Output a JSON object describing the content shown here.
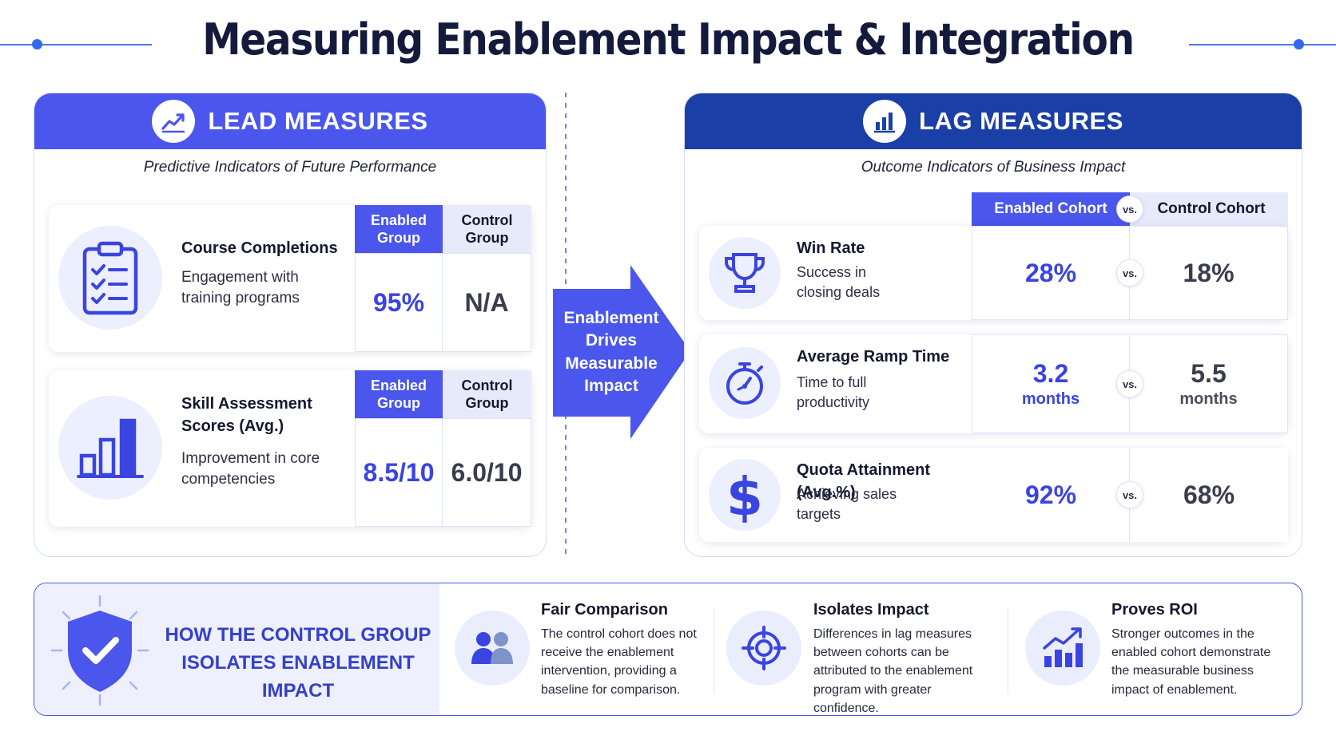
{
  "title": "Measuring Enablement Impact & Integration",
  "lead": {
    "heading": "LEAD MEASURES",
    "heading_icon": "trend-line-icon",
    "subtitle": "Predictive Indicators of Future Performance",
    "col_enabled": "Enabled Group",
    "col_control": "Control Group",
    "rows": [
      {
        "icon": "clipboard-checklist-icon",
        "title": "Course Completions",
        "description": "Engagement with training programs",
        "enabled": "95%",
        "control": "N/A"
      },
      {
        "icon": "bar-chart-icon",
        "title": "Skill Assessment Scores (Avg.)",
        "description": "Improvement in core competencies",
        "enabled": "8.5/10",
        "control": "6.0/10"
      }
    ]
  },
  "arrow": {
    "label": "Enablement Drives Measurable Impact"
  },
  "lag": {
    "heading": "LAG MEASURES",
    "heading_icon": "bar-chart-icon",
    "subtitle": "Outcome Indicators of Business Impact",
    "col_enabled": "Enabled Cohort",
    "col_control": "Control Cohort",
    "vs": "vs.",
    "rows": [
      {
        "icon": "trophy-icon",
        "title": "Win Rate",
        "description": "Success in closing deals",
        "enabled": "28%",
        "enabled_unit": "",
        "control": "18%",
        "control_unit": ""
      },
      {
        "icon": "stopwatch-icon",
        "title": "Average Ramp Time",
        "description": "Time to full productivity",
        "enabled": "3.2",
        "enabled_unit": "months",
        "control": "5.5",
        "control_unit": "months"
      },
      {
        "icon": "dollar-icon",
        "title": "Quota Attainment (Avg.%)",
        "description": "Achieving sales targets",
        "enabled": "92%",
        "enabled_unit": "",
        "control": "68%",
        "control_unit": ""
      }
    ]
  },
  "banner": {
    "icon": "shield-check-icon",
    "heading": "HOW THE CONTROL GROUP ISOLATES ENABLEMENT IMPACT",
    "features": [
      {
        "icon": "people-icon",
        "title": "Fair Comparison",
        "description": "The control cohort does not receive the enablement intervention, providing a baseline for comparison."
      },
      {
        "icon": "target-icon",
        "title": "Isolates Impact",
        "description": "Differences in lag measures between cohorts can be attributed to the enablement program with greater confidence."
      },
      {
        "icon": "growth-chart-icon",
        "title": "Proves ROI",
        "description": "Stronger outcomes in the enabled cohort demonstrate the measurable business impact of enablement."
      }
    ]
  },
  "colors": {
    "lead_header": "#4a56ec",
    "lag_header": "#1a3fa6",
    "accent": "#3a44e0",
    "arrow": "#4a56ec"
  }
}
